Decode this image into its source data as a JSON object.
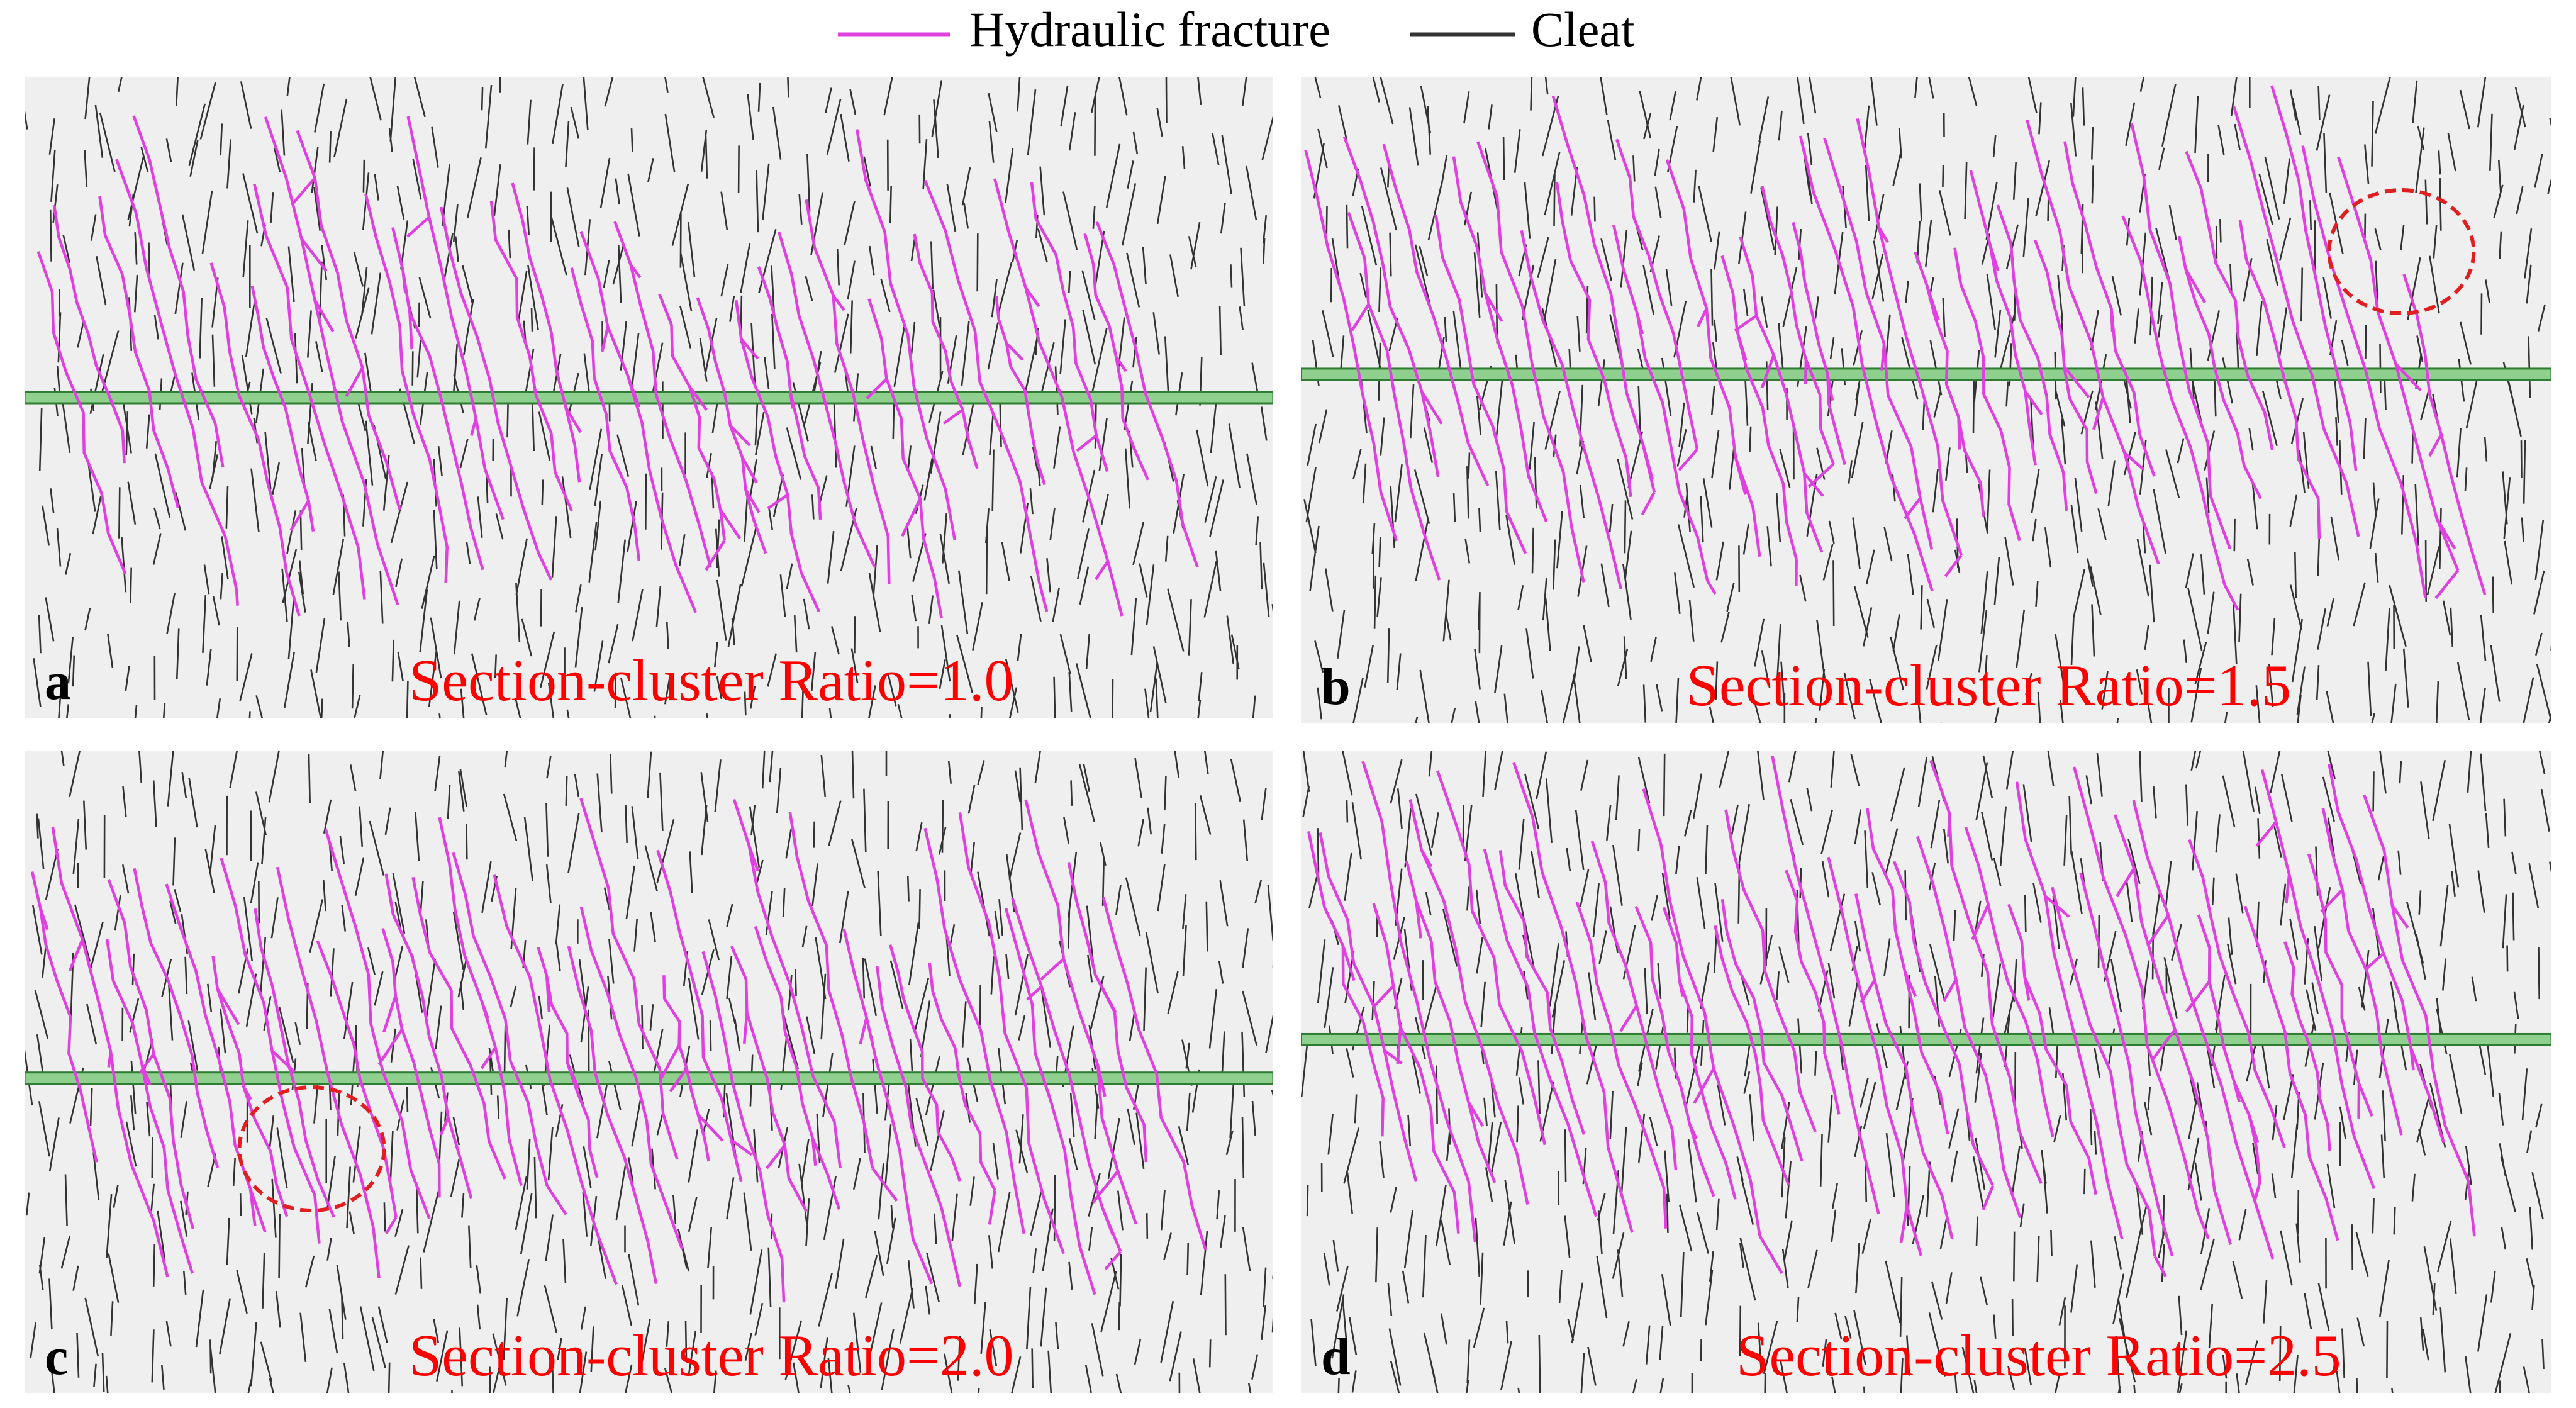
{
  "legend": [
    {
      "label": "Hydraulic fracture"
    },
    {
      "label": "Cleat"
    }
  ],
  "panels": [
    {
      "letter": "a",
      "label": "Section-cluster Ratio=1.0"
    },
    {
      "letter": "b",
      "label": "Section-cluster Ratio=1.5"
    },
    {
      "letter": "c",
      "label": "Section-cluster Ratio=2.0"
    },
    {
      "letter": "d",
      "label": "Section-cluster Ratio=2.5"
    }
  ]
}
